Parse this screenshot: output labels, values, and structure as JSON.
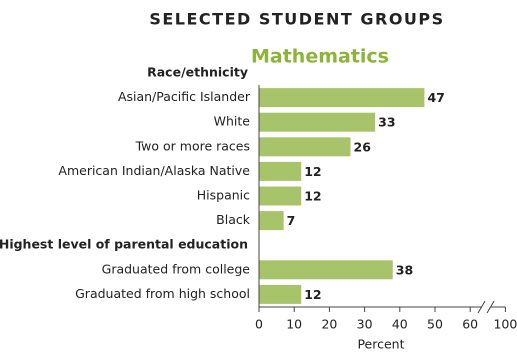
{
  "chart_data": {
    "type": "bar",
    "orientation": "horizontal",
    "title": "SELECTED STUDENT GROUPS",
    "subtitle": "Mathematics",
    "xlabel": "Percent",
    "groups": [
      {
        "name": "Race/ethnicity",
        "categories": [
          "Asian/Pacific Islander",
          "White",
          "Two or more races",
          "American Indian/Alaska Native",
          "Hispanic",
          "Black"
        ],
        "values": [
          47,
          33,
          26,
          12,
          12,
          7
        ]
      },
      {
        "name": "Highest level of parental education",
        "categories": [
          "Graduated from college",
          "Graduated from high school"
        ],
        "values": [
          38,
          12
        ]
      }
    ],
    "color": "#a8c46a",
    "subtitle_color": "#8db33a",
    "xlim": [
      0,
      100
    ],
    "xticks": [
      0,
      10,
      20,
      30,
      40,
      50,
      60,
      100
    ],
    "axis_break": true,
    "data_labels": true
  }
}
